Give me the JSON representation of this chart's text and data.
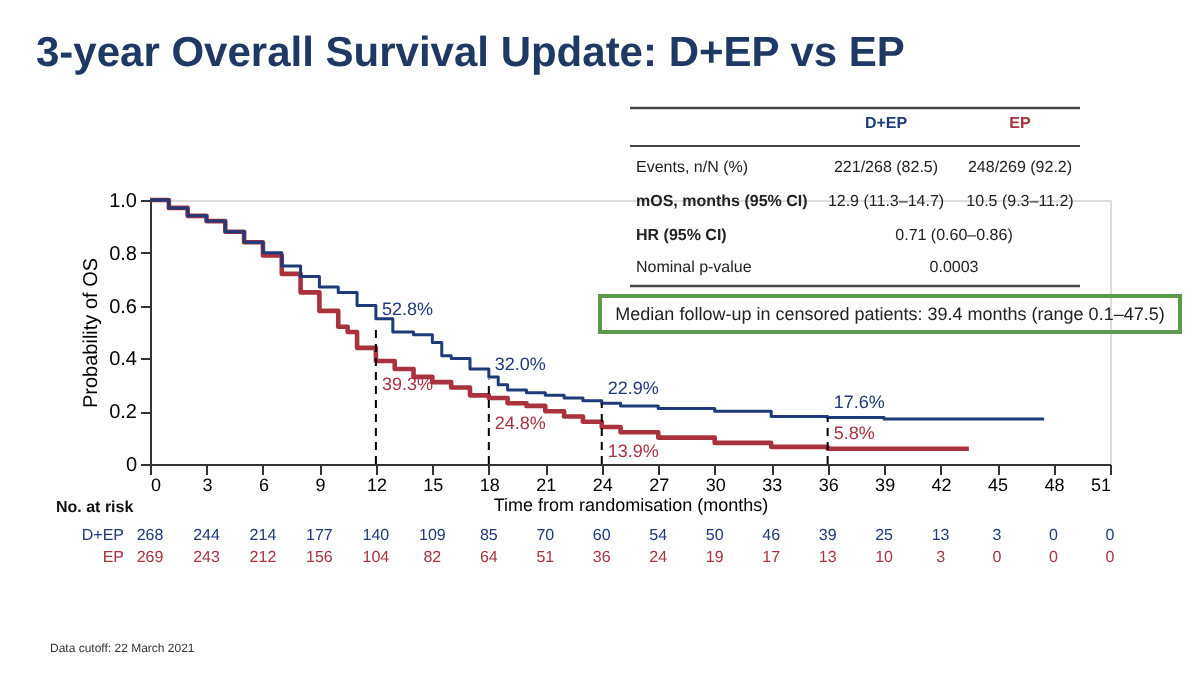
{
  "chart_data": {
    "type": "step",
    "title": "3-year Overall Survival Update: D+EP vs EP",
    "xlabel": "Time from randomisation (months)",
    "ylabel": "Probability of OS",
    "xlim": [
      0,
      51
    ],
    "xticks": [
      0,
      3,
      6,
      9,
      12,
      15,
      18,
      21,
      24,
      27,
      30,
      33,
      36,
      39,
      42,
      45,
      48,
      51
    ],
    "ylim": [
      0,
      1
    ],
    "yticks": [
      0,
      0.2,
      0.4,
      0.6,
      0.8,
      {
        "value": 1,
        "label": "1.0"
      }
    ],
    "grid": false,
    "legend": false,
    "marker": "none",
    "line_style": "solid",
    "series": [
      {
        "name": "D+EP",
        "color": "#1f3a78",
        "x": [
          0,
          1,
          2,
          3,
          4,
          5,
          6,
          7,
          8,
          9,
          10,
          11,
          12,
          12.9,
          14,
          15,
          15.5,
          16,
          17,
          18,
          18.5,
          19,
          20,
          21,
          22,
          23,
          24,
          25,
          27,
          30,
          33,
          36,
          39,
          42,
          45,
          47.5
        ],
        "values": [
          1.0,
          0.97,
          0.94,
          0.92,
          0.88,
          0.84,
          0.8,
          0.75,
          0.71,
          0.67,
          0.65,
          0.6,
          0.55,
          0.5,
          0.49,
          0.46,
          0.41,
          0.4,
          0.36,
          0.33,
          0.3,
          0.28,
          0.27,
          0.26,
          0.25,
          0.24,
          0.23,
          0.22,
          0.21,
          0.2,
          0.18,
          0.176,
          0.17,
          0.17,
          0.17,
          0.17
        ]
      },
      {
        "name": "EP",
        "color": "#a8323e",
        "x": [
          0,
          1,
          2,
          3,
          4,
          5,
          6,
          7,
          8,
          9,
          10,
          10.5,
          11,
          12,
          13,
          14,
          15,
          16,
          17,
          18,
          19,
          20,
          21,
          22,
          23,
          24,
          25,
          27,
          30,
          33,
          36,
          39,
          43.5
        ],
        "values": [
          1.0,
          0.97,
          0.94,
          0.92,
          0.88,
          0.84,
          0.79,
          0.72,
          0.65,
          0.58,
          0.52,
          0.5,
          0.44,
          0.39,
          0.36,
          0.33,
          0.31,
          0.29,
          0.26,
          0.25,
          0.23,
          0.22,
          0.2,
          0.18,
          0.16,
          0.14,
          0.12,
          0.1,
          0.08,
          0.065,
          0.058,
          0.058,
          0.058
        ]
      }
    ],
    "ref_lines": [
      {
        "axis": "x",
        "value": 12,
        "line_style": "dashed",
        "color": "#000000"
      },
      {
        "axis": "x",
        "value": 18,
        "line_style": "dashed",
        "color": "#000000"
      },
      {
        "axis": "x",
        "value": 24,
        "line_style": "dashed",
        "color": "#000000"
      },
      {
        "axis": "x",
        "value": 36,
        "line_style": "dashed",
        "color": "#000000"
      }
    ],
    "annotations": [
      {
        "text": "52.8%",
        "x": 12,
        "y": 0.528
      },
      {
        "text": "39.3%",
        "x": 12,
        "y": 0.393
      },
      {
        "text": "32.0%",
        "x": 18,
        "y": 0.32
      },
      {
        "text": "24.8%",
        "x": 18,
        "y": 0.248
      },
      {
        "text": "22.9%",
        "x": 24,
        "y": 0.229
      },
      {
        "text": "13.9%",
        "x": 24,
        "y": 0.139
      },
      {
        "text": "17.6%",
        "x": 36,
        "y": 0.176
      },
      {
        "text": "5.8%",
        "x": 36,
        "y": 0.058
      },
      "\tD+EP\tEP",
      "Events, n/N (%)\t221/268 (82.5)\t248/269 (92.2)",
      "mOS, months (95% CI)\t12.9 (11.3–14.7)\t10.5 (9.3–11.2)",
      "HR (95% CI)\t0.71 (0.60–0.86)",
      "Nominal p-value\t0.0003",
      "Median follow-up in censored patients: 39.4 months (range 0.1–47.5)",
      "No. at risk",
      "268\t244\t214\t177\t140\t109\t85\t70\t60\t54\t50\t46\t39\t25\t13\t3\t0\t0",
      "269\t243\t212\t156\t104\t82\t64\t51\t36\t24\t19\t17\t13\t10\t3\t0\t0\t0",
      "Data cutoff: 22 March 2021"
    ]
  }
}
